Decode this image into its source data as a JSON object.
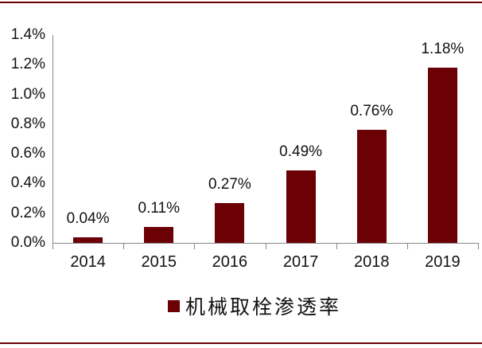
{
  "page": {
    "top_rule_color": "#6B0005",
    "bottom_rule_color": "#6B0005",
    "background": "#ffffff"
  },
  "chart_data": {
    "type": "bar",
    "title": "",
    "categories": [
      "2014",
      "2015",
      "2016",
      "2017",
      "2018",
      "2019"
    ],
    "values": [
      0.04,
      0.11,
      0.27,
      0.49,
      0.76,
      1.18
    ],
    "value_labels": [
      "0.04%",
      "0.11%",
      "0.27%",
      "0.49%",
      "0.76%",
      "1.18%"
    ],
    "unit": "%",
    "xlabel": "",
    "ylabel": "",
    "ylim": [
      0,
      1.4
    ],
    "y_tick_step": 0.2,
    "y_tick_labels": [
      "0.0%",
      "0.2%",
      "0.4%",
      "0.6%",
      "0.8%",
      "1.0%",
      "1.2%",
      "1.4%"
    ],
    "grid": false,
    "legend_position": "bottom",
    "legend_entries": [
      {
        "label": "机械取栓渗透率",
        "color": "#6B0005",
        "swatch": "square"
      }
    ],
    "bar_color": "#6B0005",
    "axis_color": "#878787",
    "text_color": "#111111"
  }
}
